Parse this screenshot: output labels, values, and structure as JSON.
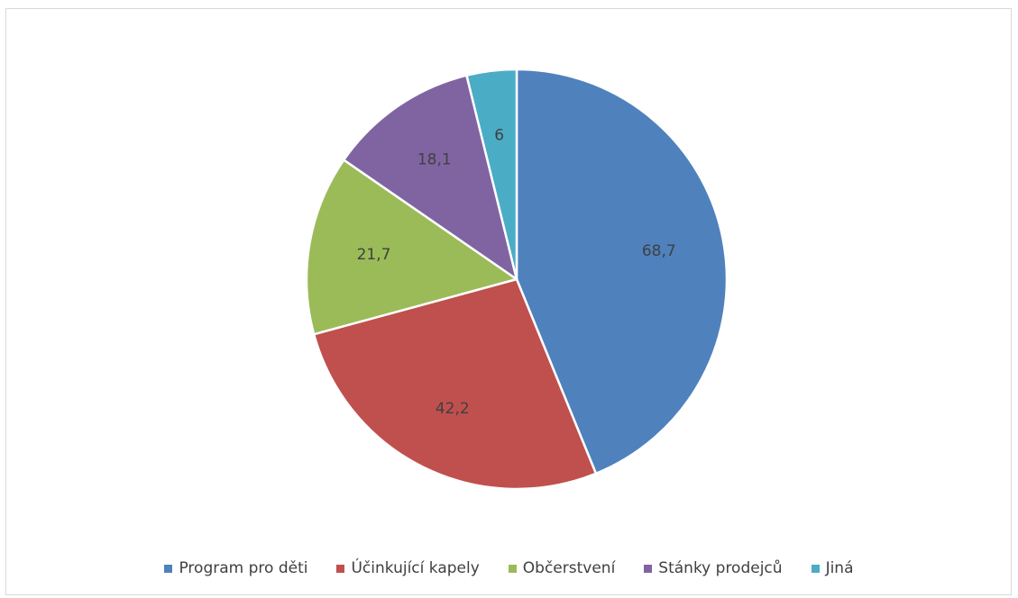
{
  "chart_data": {
    "type": "pie",
    "title": "",
    "categories": [
      "Program pro děti",
      "Účinkující kapely",
      "Občerstvení",
      "Stánky prodejců",
      "Jiná"
    ],
    "values": [
      68.7,
      42.2,
      21.7,
      18.1,
      6
    ],
    "value_labels": [
      "68,7",
      "42,2",
      "21,7",
      "18,1",
      "6"
    ],
    "colors": [
      "#4f81bd",
      "#c0504d",
      "#9bbb59",
      "#8064a2",
      "#4bacc6"
    ],
    "start_angle_deg": 0,
    "direction": "clockwise",
    "legend_position": "bottom",
    "data_labels": "inside"
  }
}
